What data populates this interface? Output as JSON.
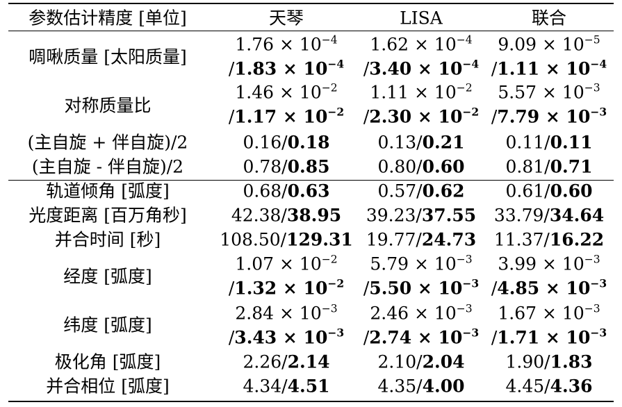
{
  "header": {
    "param": "参数估计精度 [单位]",
    "tianqin": "天琴",
    "lisa": "LISA",
    "joint": "联合"
  },
  "rows": [
    {
      "label": "啁啾质量 [太阳质量]",
      "tq_top": [
        "1.76 × 10",
        "−4"
      ],
      "tq_bot": [
        "/1.83 × 10",
        "−4"
      ],
      "lisa_top": [
        "1.62 × 10",
        "−4"
      ],
      "lisa_bot": [
        "/3.40 × 10",
        "−4"
      ],
      "joint_top": [
        "9.09 × 10",
        "−5"
      ],
      "joint_bot": [
        "/1.11 × 10",
        "−4"
      ]
    },
    {
      "label": "对称质量比",
      "tq_top": [
        "1.46 × 10",
        "−2"
      ],
      "tq_bot": [
        "/1.17 × 10",
        "−2"
      ],
      "lisa_top": [
        "1.11 × 10",
        "−2"
      ],
      "lisa_bot": [
        "/2.30 × 10",
        "−2"
      ],
      "joint_top": [
        "5.57 × 10",
        "−3"
      ],
      "joint_bot": [
        "/7.79 × 10",
        "−3"
      ]
    },
    {
      "label": "(主自旋 + 伴自旋)/2",
      "tq": [
        "0.16/",
        "0.18"
      ],
      "lisa": [
        "0.13/",
        "0.21"
      ],
      "joint": [
        "0.11/",
        "0.11"
      ]
    },
    {
      "label": "(主自旋 - 伴自旋)/2",
      "tq": [
        "0.78/",
        "0.85"
      ],
      "lisa": [
        "0.80/",
        "0.60"
      ],
      "joint": [
        "0.81/",
        "0.71"
      ]
    },
    {
      "label": "轨道倾角 [弧度]",
      "tq": [
        "0.68/",
        "0.63"
      ],
      "lisa": [
        "0.57/",
        "0.62"
      ],
      "joint": [
        "0.61/",
        "0.60"
      ]
    },
    {
      "label": "光度距离 [百万角秒]",
      "tq": [
        "42.38/",
        "38.95"
      ],
      "lisa": [
        "39.23/",
        "37.55"
      ],
      "joint": [
        "33.79/",
        "34.64"
      ]
    },
    {
      "label": "并合时间 [秒]",
      "tq": [
        "108.50/",
        "129.31"
      ],
      "lisa": [
        "19.77/",
        "24.73"
      ],
      "joint": [
        "11.37/",
        "16.22"
      ]
    },
    {
      "label": "经度 [弧度]",
      "tq_top": [
        "1.07 × 10",
        "−2"
      ],
      "tq_bot": [
        "/1.32 × 10",
        "−2"
      ],
      "lisa_top": [
        "5.79 × 10",
        "−3"
      ],
      "lisa_bot": [
        "/5.50 × 10",
        "−3"
      ],
      "joint_top": [
        "3.99 × 10",
        "−3"
      ],
      "joint_bot": [
        "/4.85 × 10",
        "−3"
      ]
    },
    {
      "label": "纬度 [弧度]",
      "tq_top": [
        "2.84 × 10",
        "−3"
      ],
      "tq_bot": [
        "/3.43 × 10",
        "−3"
      ],
      "lisa_top": [
        "2.46 × 10",
        "−3"
      ],
      "lisa_bot": [
        "/2.74 × 10",
        "−3"
      ],
      "joint_top": [
        "1.67 × 10",
        "−3"
      ],
      "joint_bot": [
        "/1.71 × 10",
        "−3"
      ]
    },
    {
      "label": "极化角 [弧度]",
      "tq": [
        "2.26/",
        "2.14"
      ],
      "lisa": [
        "2.10/",
        "2.04"
      ],
      "joint": [
        "1.90/",
        "1.83"
      ]
    },
    {
      "label": "并合相位 [弧度]",
      "tq": [
        "4.34/",
        "4.51"
      ],
      "lisa": [
        "4.35/",
        "4.00"
      ],
      "joint": [
        "4.45/",
        "4.36"
      ]
    }
  ]
}
